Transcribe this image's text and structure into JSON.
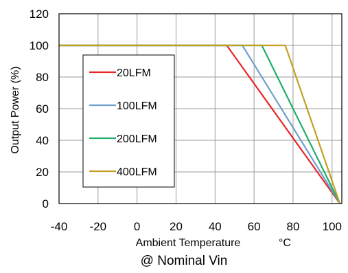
{
  "chart_data": {
    "type": "line",
    "title": "",
    "caption": "@ Nominal Vin",
    "xlabel": "Ambient Temperature",
    "xunit": "°C",
    "ylabel": "Output Power (%)",
    "xlim": [
      -40,
      105
    ],
    "ylim": [
      0,
      120
    ],
    "xticks": [
      -40,
      -20,
      0,
      20,
      40,
      60,
      80,
      100
    ],
    "yticks": [
      0,
      20,
      40,
      60,
      80,
      100,
      120
    ],
    "grid": true,
    "legend_position": "left",
    "series": [
      {
        "name": "20LFM",
        "color": "#e8262a",
        "x": [
          -40,
          46,
          104
        ],
        "y": [
          100,
          100,
          0
        ]
      },
      {
        "name": "100LFM",
        "color": "#6f9fcd",
        "x": [
          -40,
          54,
          104
        ],
        "y": [
          100,
          100,
          0
        ]
      },
      {
        "name": "200LFM",
        "color": "#1fae6a",
        "x": [
          -40,
          64,
          104
        ],
        "y": [
          100,
          100,
          0
        ]
      },
      {
        "name": "400LFM",
        "color": "#c3a020",
        "x": [
          -40,
          76,
          104
        ],
        "y": [
          100,
          100,
          0
        ]
      }
    ]
  }
}
